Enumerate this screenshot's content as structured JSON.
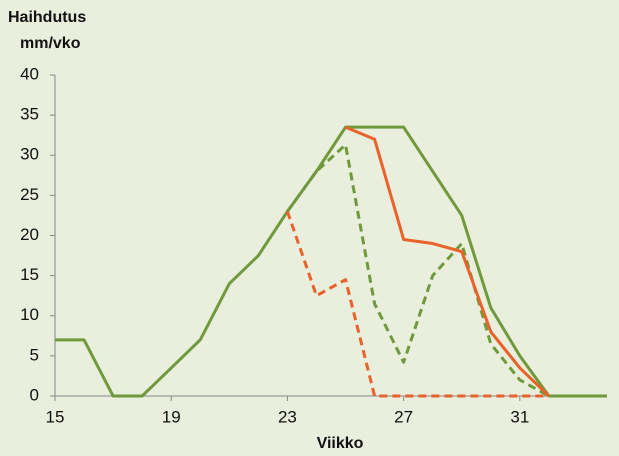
{
  "chart_data": {
    "type": "line",
    "ylabel": [
      "Haihdutus",
      "mm/vko"
    ],
    "xlabel": "Viikko",
    "x": [
      15,
      16,
      17,
      18,
      19,
      20,
      21,
      22,
      23,
      24,
      25,
      26,
      27,
      28,
      29,
      30,
      31,
      32,
      33,
      34
    ],
    "series": [
      {
        "color": "#6f9a3c",
        "dashed": false,
        "values": [
          7,
          7,
          0,
          0,
          3.5,
          7,
          14,
          17.5,
          23,
          28,
          33.5,
          33.5,
          33.5,
          28,
          22.5,
          11,
          5,
          0,
          0,
          0
        ]
      },
      {
        "color": "#6f9a3c",
        "dashed": true,
        "values": [
          null,
          null,
          null,
          null,
          null,
          null,
          null,
          null,
          23,
          28,
          31.3,
          11.5,
          4.2,
          15,
          19,
          6.5,
          2,
          0,
          null,
          null
        ]
      },
      {
        "color": "#e8622a",
        "dashed": false,
        "values": [
          null,
          null,
          null,
          null,
          null,
          null,
          null,
          null,
          null,
          null,
          33.5,
          32,
          19.5,
          19,
          18,
          8,
          3.5,
          0,
          null,
          null
        ]
      },
      {
        "color": "#e8622a",
        "dashed": true,
        "values": [
          null,
          null,
          null,
          null,
          null,
          null,
          null,
          null,
          23,
          12.5,
          14.5,
          0,
          0,
          0,
          0,
          0,
          0,
          0,
          null,
          null
        ]
      }
    ],
    "xlim": [
      15,
      34
    ],
    "xticks": [
      15,
      19,
      23,
      27,
      31
    ],
    "ylim": [
      0,
      40
    ],
    "yticks": [
      0,
      5,
      10,
      15,
      20,
      25,
      30,
      35,
      40
    ],
    "grid": false
  }
}
